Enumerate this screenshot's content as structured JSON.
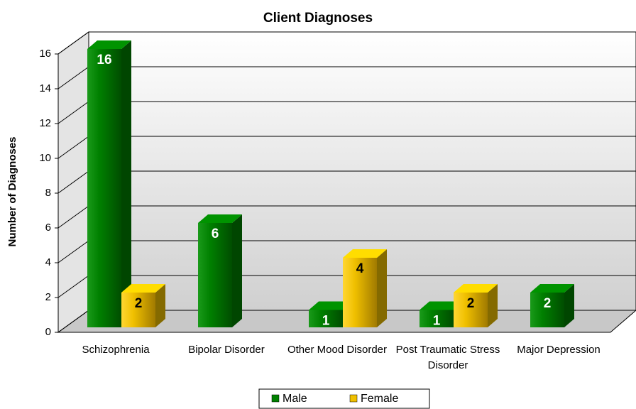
{
  "chart_data": {
    "type": "bar3d",
    "title": "Client Diagnoses",
    "y_label": "Number of Diagnoses",
    "categories": [
      "Schizophrenia",
      "Bipolar Disorder",
      "Other Mood Disorder",
      "Post Traumatic Stress Disorder",
      "Major Depression"
    ],
    "series": [
      {
        "name": "Male",
        "color": "#008000",
        "values": [
          16,
          6,
          1,
          1,
          2
        ]
      },
      {
        "name": "Female",
        "color": "#f0c000",
        "values": [
          2,
          null,
          4,
          2,
          null
        ]
      }
    ],
    "ylim": [
      0,
      16
    ],
    "yticks": [
      0,
      2,
      4,
      6,
      8,
      10,
      12,
      14,
      16
    ],
    "grid": true,
    "legend": "bottom"
  }
}
